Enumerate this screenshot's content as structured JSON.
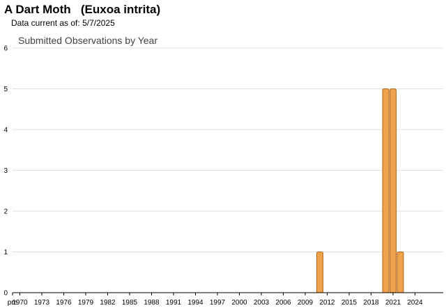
{
  "header": {
    "species_common": "A Dart Moth",
    "species_latin": "(Euxoa intrita)",
    "data_current_label": "Data current as of:",
    "data_current_date": "5/7/2025"
  },
  "chart_data": {
    "type": "bar",
    "title": "Submitted Observations by Year",
    "xlabel": "",
    "ylabel": "",
    "ylim": [
      0,
      6
    ],
    "yticks": [
      0,
      1,
      2,
      3,
      4,
      5,
      6
    ],
    "grid": true,
    "categories": [
      "pre 1970",
      "1970",
      "1971",
      "1972",
      "1973",
      "1974",
      "1975",
      "1976",
      "1977",
      "1978",
      "1979",
      "1980",
      "1981",
      "1982",
      "1983",
      "1984",
      "1985",
      "1986",
      "1987",
      "1988",
      "1989",
      "1990",
      "1991",
      "1992",
      "1993",
      "1994",
      "1995",
      "1996",
      "1997",
      "1998",
      "1999",
      "2000",
      "2001",
      "2002",
      "2003",
      "2004",
      "2005",
      "2006",
      "2007",
      "2008",
      "2009",
      "2010",
      "2011",
      "2012",
      "2013",
      "2014",
      "2015",
      "2016",
      "2017",
      "2018",
      "2019",
      "2020",
      "2021",
      "2022",
      "2023",
      "2024",
      "2025"
    ],
    "tick_labels": [
      "pre",
      "1970",
      "1973",
      "1976",
      "1979",
      "1982",
      "1985",
      "1988",
      "1991",
      "1994",
      "1997",
      "2000",
      "2003",
      "2006",
      "2009",
      "2012",
      "2015",
      "2018",
      "2021",
      "2024"
    ],
    "series": [
      {
        "values": [
          0,
          0,
          0,
          0,
          0,
          0,
          0,
          0,
          0,
          0,
          0,
          0,
          0,
          0,
          0,
          0,
          0,
          0,
          0,
          0,
          0,
          0,
          0,
          0,
          0,
          0,
          0,
          0,
          0,
          0,
          0,
          0,
          0,
          0,
          0,
          0,
          0,
          0,
          0,
          0,
          0,
          0,
          1,
          0,
          0,
          0,
          0,
          0,
          0,
          0,
          0,
          5,
          5,
          1,
          0,
          0,
          0
        ],
        "color": "#F0A24A",
        "edge_color": "#B5661A"
      }
    ]
  }
}
